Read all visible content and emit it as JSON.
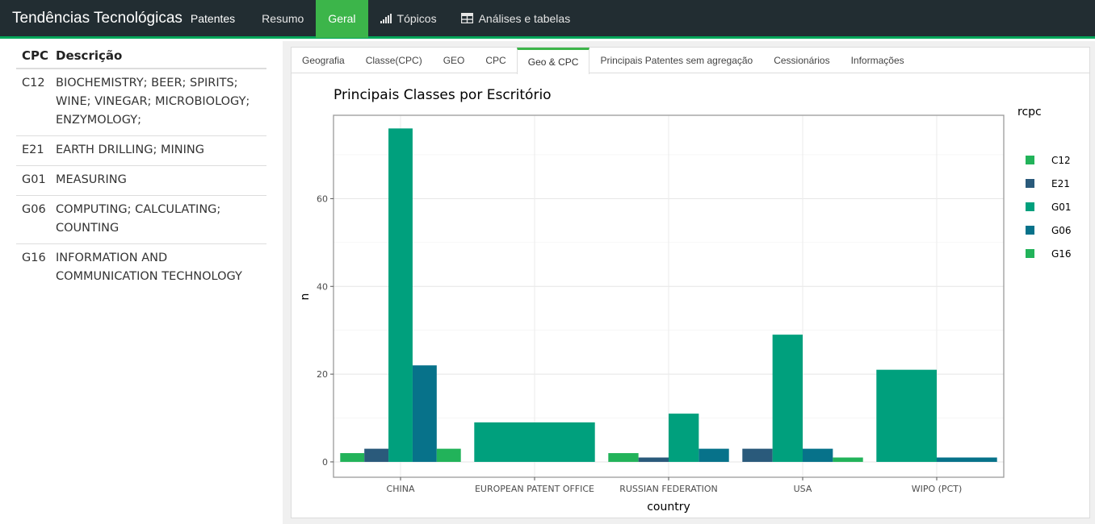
{
  "navbar": {
    "brand": "Tendências Tecnológicas",
    "brand_sub": "Patentes",
    "items": [
      {
        "label": "Resumo",
        "active": false
      },
      {
        "label": "Geral",
        "active": true
      },
      {
        "label": "Tópicos",
        "active": false,
        "icon": "signal-bars-icon"
      },
      {
        "label": "Análises e tabelas",
        "active": false,
        "icon": "table-icon"
      }
    ]
  },
  "cpc_table": {
    "headers": [
      "CPC",
      "Descrição"
    ],
    "rows": [
      {
        "code": "C12",
        "desc": [
          "BIOCHEMISTRY; BEER; SPIRITS;",
          "WINE; VINEGAR; MICROBIOLOGY;",
          "ENZYMOLOGY;"
        ]
      },
      {
        "code": "E21",
        "desc": [
          "EARTH DRILLING; MINING"
        ]
      },
      {
        "code": "G01",
        "desc": [
          "MEASURING"
        ]
      },
      {
        "code": "G06",
        "desc": [
          "COMPUTING; CALCULATING;",
          "COUNTING"
        ]
      },
      {
        "code": "G16",
        "desc": [
          "INFORMATION AND",
          "COMMUNICATION TECHNOLOGY"
        ]
      }
    ]
  },
  "tabs": [
    {
      "label": "Geografia",
      "active": false
    },
    {
      "label": "Classe(CPC)",
      "active": false
    },
    {
      "label": "GEO",
      "active": false
    },
    {
      "label": "CPC",
      "active": false
    },
    {
      "label": "Geo & CPC",
      "active": true
    },
    {
      "label": "Principais Patentes sem agregação",
      "active": false
    },
    {
      "label": "Cessionários",
      "active": false
    },
    {
      "label": "Informações",
      "active": false
    }
  ],
  "chart_data": {
    "type": "bar",
    "title": "Principais Classes por Escritório",
    "xlabel": "country",
    "ylabel": "n",
    "ylim": [
      -3.5,
      79
    ],
    "yticks": [
      0,
      20,
      40,
      60
    ],
    "grid": true,
    "legend_title": "rcpc",
    "legend_position": "right",
    "categories": [
      "CHINA",
      "EUROPEAN PATENT OFFICE",
      "RUSSIAN FEDERATION",
      "USA",
      "WIPO (PCT)"
    ],
    "series": [
      {
        "name": "C12",
        "color": "#22b35a"
      },
      {
        "name": "E21",
        "color": "#2a5a7b"
      },
      {
        "name": "G01",
        "color": "#00a07d"
      },
      {
        "name": "G06",
        "color": "#07728a"
      },
      {
        "name": "G16",
        "color": "#22b35a"
      }
    ],
    "groups": [
      {
        "category": "CHINA",
        "bars": [
          {
            "series": "C12",
            "value": 2
          },
          {
            "series": "E21",
            "value": 3
          },
          {
            "series": "G01",
            "value": 76
          },
          {
            "series": "G06",
            "value": 22
          },
          {
            "series": "G16",
            "value": 3
          }
        ]
      },
      {
        "category": "EUROPEAN PATENT OFFICE",
        "bars": [
          {
            "series": "G01",
            "value": 9
          }
        ]
      },
      {
        "category": "RUSSIAN FEDERATION",
        "bars": [
          {
            "series": "C12",
            "value": 2
          },
          {
            "series": "E21",
            "value": 1
          },
          {
            "series": "G01",
            "value": 11
          },
          {
            "series": "G06",
            "value": 3
          }
        ]
      },
      {
        "category": "USA",
        "bars": [
          {
            "series": "E21",
            "value": 3
          },
          {
            "series": "G01",
            "value": 29
          },
          {
            "series": "G06",
            "value": 3
          },
          {
            "series": "G16",
            "value": 1
          }
        ]
      },
      {
        "category": "WIPO (PCT)",
        "bars": [
          {
            "series": "G01",
            "value": 21
          },
          {
            "series": "G06",
            "value": 1
          }
        ]
      }
    ]
  }
}
